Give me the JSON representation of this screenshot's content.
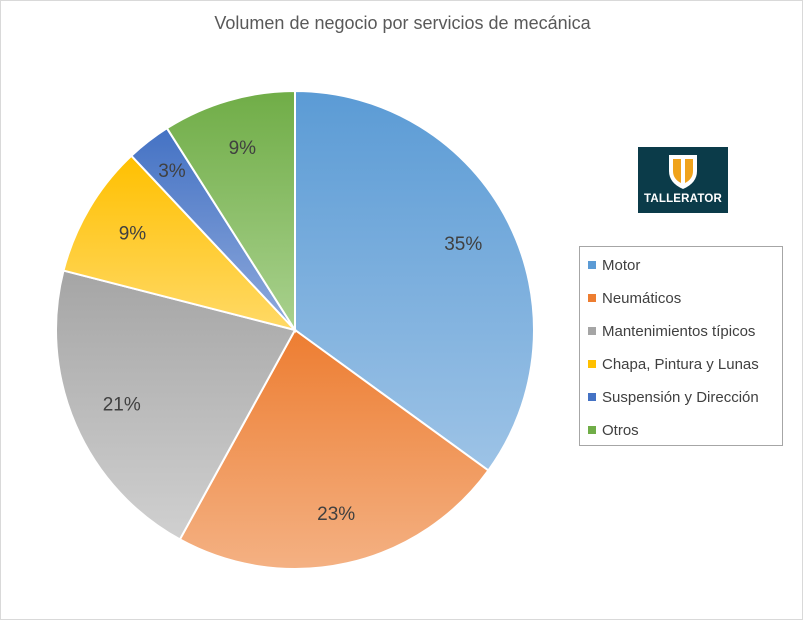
{
  "chart_data": {
    "type": "pie",
    "title": "Volumen de negocio por servicios de mecánica",
    "slices": [
      {
        "name": "Motor",
        "value": 35,
        "label": "35%",
        "color": "#5b9bd5",
        "color_light": "#9dc3e6"
      },
      {
        "name": "Neumáticos",
        "value": 23,
        "label": "23%",
        "color": "#ed7d31",
        "color_light": "#f4b183"
      },
      {
        "name": "Mantenimientos típicos",
        "value": 21,
        "label": "21%",
        "color": "#a5a5a5",
        "color_light": "#d0d0d0"
      },
      {
        "name": "Chapa, Pintura y Lunas",
        "value": 9,
        "label": "9%",
        "color": "#ffc000",
        "color_light": "#ffd966"
      },
      {
        "name": "Suspensión y Dirección",
        "value": 3,
        "label": "3%",
        "color": "#4472c4",
        "color_light": "#8faadc"
      },
      {
        "name": "Otros",
        "value": 9,
        "label": "9%",
        "color": "#70ad47",
        "color_light": "#a9d18e"
      }
    ],
    "legend_position": "right"
  },
  "logo": {
    "text": "TALLERATOR",
    "icon": "tallerator-shield-icon",
    "background": "#0b3b49"
  }
}
